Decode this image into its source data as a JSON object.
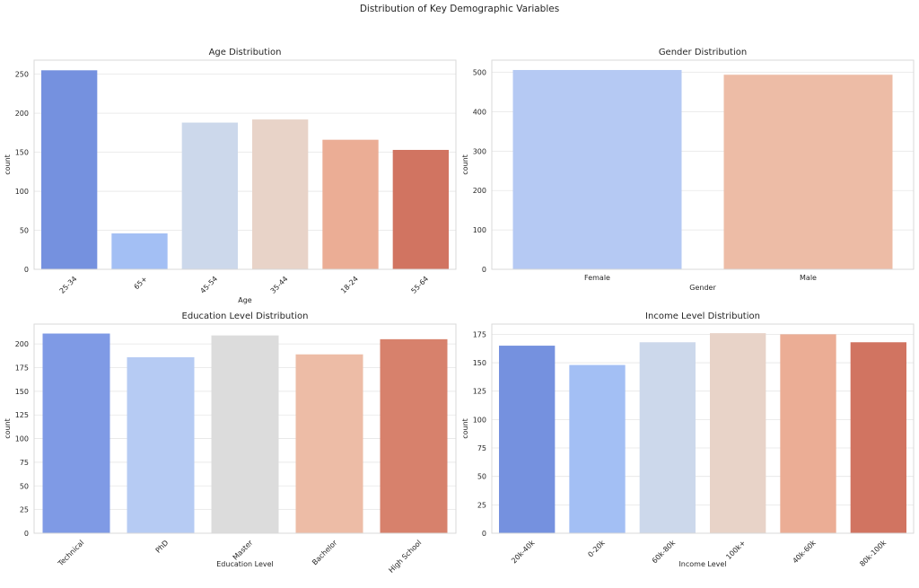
{
  "figure_title": "Distribution of Key Demographic Variables",
  "chart_data": [
    {
      "type": "bar",
      "title": "Age Distribution",
      "xlabel": "Age",
      "ylabel": "count",
      "categories": [
        "25-34",
        "65+",
        "45-54",
        "35-44",
        "18-24",
        "55-64"
      ],
      "values": [
        255,
        46,
        188,
        192,
        166,
        153
      ],
      "ylim": [
        0,
        268
      ],
      "yticks": [
        0,
        50,
        100,
        150,
        200,
        250
      ],
      "xtick_rotation": 45,
      "grid": true,
      "colors": [
        "#7591df",
        "#a3bff4",
        "#ccd8eb",
        "#e8d3c8",
        "#ebad95",
        "#d17461"
      ]
    },
    {
      "type": "bar",
      "title": "Gender Distribution",
      "xlabel": "Gender",
      "ylabel": "count",
      "categories": [
        "Female",
        "Male"
      ],
      "values": [
        506,
        494
      ],
      "ylim": [
        0,
        531
      ],
      "yticks": [
        0,
        100,
        200,
        300,
        400,
        500
      ],
      "xtick_rotation": 0,
      "grid": true,
      "colors": [
        "#b5c9f3",
        "#edbca6"
      ]
    },
    {
      "type": "bar",
      "title": "Education Level Distribution",
      "xlabel": "Education Level",
      "ylabel": "count",
      "categories": [
        "Technical",
        "PhD",
        "Master",
        "Bachelor",
        "High School"
      ],
      "values": [
        211,
        186,
        209,
        189,
        205
      ],
      "ylim": [
        0,
        221
      ],
      "yticks": [
        0,
        25,
        50,
        75,
        100,
        125,
        150,
        175,
        200
      ],
      "xtick_rotation": 45,
      "grid": true,
      "colors": [
        "#7f9ae5",
        "#b6cbf3",
        "#dcdcdc",
        "#edbca6",
        "#d7816c"
      ]
    },
    {
      "type": "bar",
      "title": "Income Level Distribution",
      "xlabel": "Income Level",
      "ylabel": "count",
      "categories": [
        "20k-40k",
        "0-20k",
        "60k-80k",
        "100k+",
        "40k-60k",
        "80k-100k"
      ],
      "values": [
        165,
        148,
        168,
        176,
        175,
        168
      ],
      "ylim": [
        0,
        184
      ],
      "yticks": [
        0,
        25,
        50,
        75,
        100,
        125,
        150,
        175
      ],
      "xtick_rotation": 45,
      "grid": true,
      "colors": [
        "#7591df",
        "#a3bff4",
        "#ccd8eb",
        "#e8d3c8",
        "#ebad95",
        "#d17461"
      ]
    }
  ]
}
